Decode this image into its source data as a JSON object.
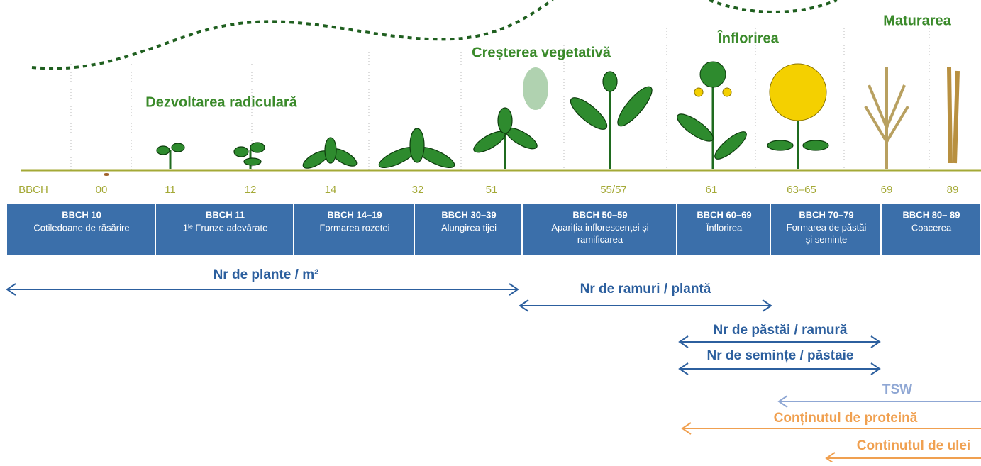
{
  "phases": [
    "Dezvoltarea radiculară",
    "Creșterea vegetativă",
    "Înflorirea",
    "Maturarea"
  ],
  "bbch_codes": [
    "BBCH",
    "00",
    "11",
    "12",
    "14",
    "32",
    "51",
    "55/57",
    "61",
    "63–65",
    "69",
    "89"
  ],
  "stages": [
    {
      "code": "BBCH 10",
      "label": "Cotiledoane de răsărire"
    },
    {
      "code": "BBCH 11",
      "label": "1ˡᵉ Frunze adevărate"
    },
    {
      "code": "BBCH 14–19",
      "label": "Formarea rozetei"
    },
    {
      "code": "BBCH 30–39",
      "label": "Alungirea tijei"
    },
    {
      "code": "BBCH 50–59",
      "label": "Apariția inflorescenței și ramificarea"
    },
    {
      "code": "BBCH 60–69",
      "label": "Înflorirea"
    },
    {
      "code": "BBCH 70–79",
      "label": "Formarea de păstăi și semințe"
    },
    {
      "code": "BBCH 80– 89",
      "label": "Coacerea"
    }
  ],
  "measures": [
    {
      "label": "Nr de plante / m²",
      "color": "#2c5f9e",
      "arrow": "both"
    },
    {
      "label": "Nr de ramuri / plantă",
      "color": "#2c5f9e",
      "arrow": "both"
    },
    {
      "label": "Nr de păstăi / ramură",
      "color": "#2c5f9e",
      "arrow": "both"
    },
    {
      "label": "Nr de semințe / păstaie",
      "color": "#2c5f9e",
      "arrow": "both"
    },
    {
      "label": "TSW",
      "color": "#8fa7d4",
      "arrow": "left"
    },
    {
      "label": "Conținutul de proteină",
      "color": "#f0a050",
      "arrow": "left"
    },
    {
      "label": "Continutul de ulei",
      "color": "#f0a050",
      "arrow": "left"
    }
  ]
}
